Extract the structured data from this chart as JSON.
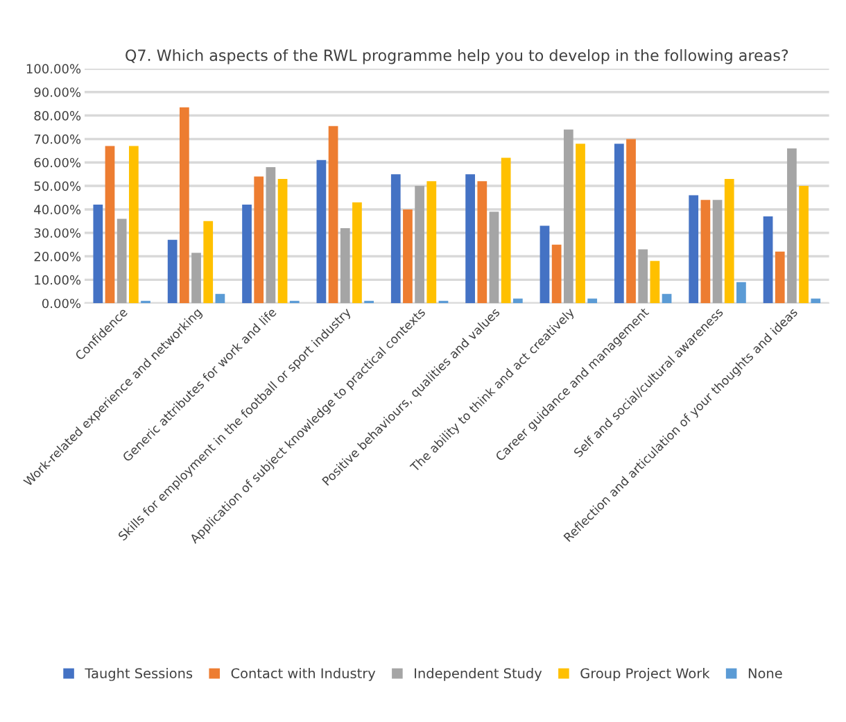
{
  "chart_data": {
    "type": "bar",
    "title": "Q7. Which aspects of the RWL programme help you to develop in the following areas?",
    "categories": [
      "Confidence",
      "Work-related experience and networking",
      "Generic attributes for work and life",
      "Skills for employment in the football or sport industry",
      "Application of subject knowledge to practical contexts",
      "Positive behaviours, qualities and values",
      "The ability to think and act creatively",
      "Career guidance and management",
      "Self and social/cultural awareness",
      "Reflection and articulation of your thoughts and ideas"
    ],
    "series": [
      {
        "name": "Taught Sessions",
        "color": "#4472c4",
        "values": [
          42,
          27,
          42,
          61,
          55,
          55,
          33,
          68,
          46,
          37
        ]
      },
      {
        "name": "Contact with Industry",
        "color": "#ed7d31",
        "values": [
          67,
          83.5,
          54,
          75.5,
          40,
          52,
          25,
          70,
          44,
          22
        ]
      },
      {
        "name": "Independent Study",
        "color": "#a5a5a5",
        "values": [
          36,
          21.5,
          58,
          32,
          50,
          39,
          74,
          23,
          44,
          66
        ]
      },
      {
        "name": "Group Project Work",
        "color": "#ffc000",
        "values": [
          67,
          35,
          53,
          43,
          52,
          62,
          68,
          18,
          53,
          50
        ]
      },
      {
        "name": "None",
        "color": "#5b9bd5",
        "values": [
          1,
          4,
          1,
          1,
          1,
          2,
          2,
          4,
          9,
          2
        ]
      }
    ],
    "ylim": [
      0,
      100
    ],
    "yticks": [
      {
        "value": 0,
        "label": "0.00%"
      },
      {
        "value": 10,
        "label": "10.00%"
      },
      {
        "value": 20,
        "label": "20.00%"
      },
      {
        "value": 30,
        "label": "30.00%"
      },
      {
        "value": 40,
        "label": "40.00%"
      },
      {
        "value": 50,
        "label": "50.00%"
      },
      {
        "value": 60,
        "label": "60.00%"
      },
      {
        "value": 70,
        "label": "70.00%"
      },
      {
        "value": 80,
        "label": "80.00%"
      },
      {
        "value": 90,
        "label": "90.00%"
      },
      {
        "value": 100,
        "label": "100.00%"
      }
    ],
    "grid": "y",
    "legend": "bottom"
  }
}
